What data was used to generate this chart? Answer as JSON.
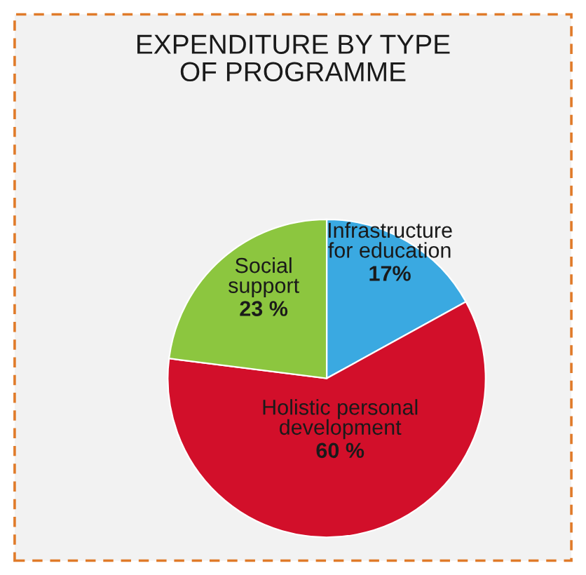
{
  "chart_data": {
    "type": "pie",
    "title": "EXPENDITURE BY TYPE\nOF PROGRAMME",
    "categories": [
      "Infrastructure\nfor education",
      "Holistic personal\ndevelopment",
      "Social\nsupport"
    ],
    "values": [
      17,
      60,
      23
    ],
    "value_labels": [
      "17%",
      "60 %",
      "23 %"
    ],
    "colors": [
      "#3aa9e1",
      "#d20f2a",
      "#8cc63f"
    ]
  }
}
